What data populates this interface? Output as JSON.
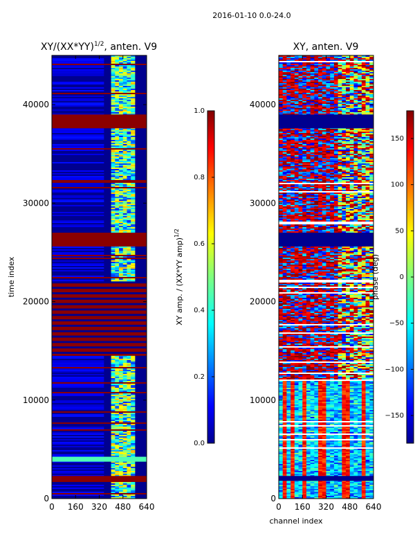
{
  "figure": {
    "suptitle": "2016-01-10 0.0-24.0",
    "colors": {
      "jet_dark_blue": "#00008f",
      "jet_blue": "#0000ff",
      "jet_cyan": "#00ffff",
      "jet_yellow": "#ffff00",
      "jet_red": "#ff0000",
      "jet_dark_red": "#800000",
      "flag_red": "#8b0000",
      "frame": "#000000"
    }
  },
  "chart_data": [
    {
      "type": "heatmap",
      "title": "XY/(XX*YY)",
      "title_superscript": "1/2",
      "title_suffix": ", anten. V9",
      "xlabel": "",
      "ylabel": "time index",
      "xlim": [
        0,
        640
      ],
      "ylim": [
        0,
        45000
      ],
      "xticks": [
        "0",
        "160",
        "320",
        "480",
        "640"
      ],
      "yticks": [
        "0",
        "10000",
        "20000",
        "30000",
        "40000"
      ],
      "ytick_values": [
        0,
        10000,
        20000,
        30000,
        40000
      ],
      "colorscale": "jet",
      "colorbar": {
        "label": "XY amp. / (XX*YY amp)",
        "label_superscript": "1/2",
        "range": [
          0.0,
          1.0
        ],
        "ticks": [
          "0.0",
          "0.2",
          "0.4",
          "0.6",
          "0.8",
          "1.0"
        ],
        "tick_values": [
          0.0,
          0.2,
          0.4,
          0.6,
          0.8,
          1.0
        ]
      },
      "flagged_time_ranges": [
        [
          1800,
          2300
        ],
        [
          25600,
          27000
        ],
        [
          37600,
          39000
        ],
        [
          14500,
          22000
        ]
      ],
      "bright_channel_range": [
        400,
        560
      ],
      "background_value": 0.05
    },
    {
      "type": "heatmap",
      "title": "XY, anten. V9",
      "xlabel": "channel index",
      "ylabel": "",
      "ylabel_colorbar": "phase (deg)",
      "xlim": [
        0,
        640
      ],
      "ylim": [
        0,
        45000
      ],
      "xticks": [
        "0",
        "160",
        "320",
        "480",
        "640"
      ],
      "yticks": [
        "0",
        "10000",
        "20000",
        "30000",
        "40000"
      ],
      "ytick_values": [
        0,
        10000,
        20000,
        30000,
        40000
      ],
      "colorscale": "jet",
      "colorbar": {
        "label": "phase (deg)",
        "range": [
          -180,
          180
        ],
        "ticks": [
          "−150",
          "−100",
          "−50",
          "0",
          "50",
          "100",
          "150"
        ],
        "tick_values": [
          -150,
          -100,
          -50,
          0,
          50,
          100,
          150
        ]
      }
    }
  ]
}
